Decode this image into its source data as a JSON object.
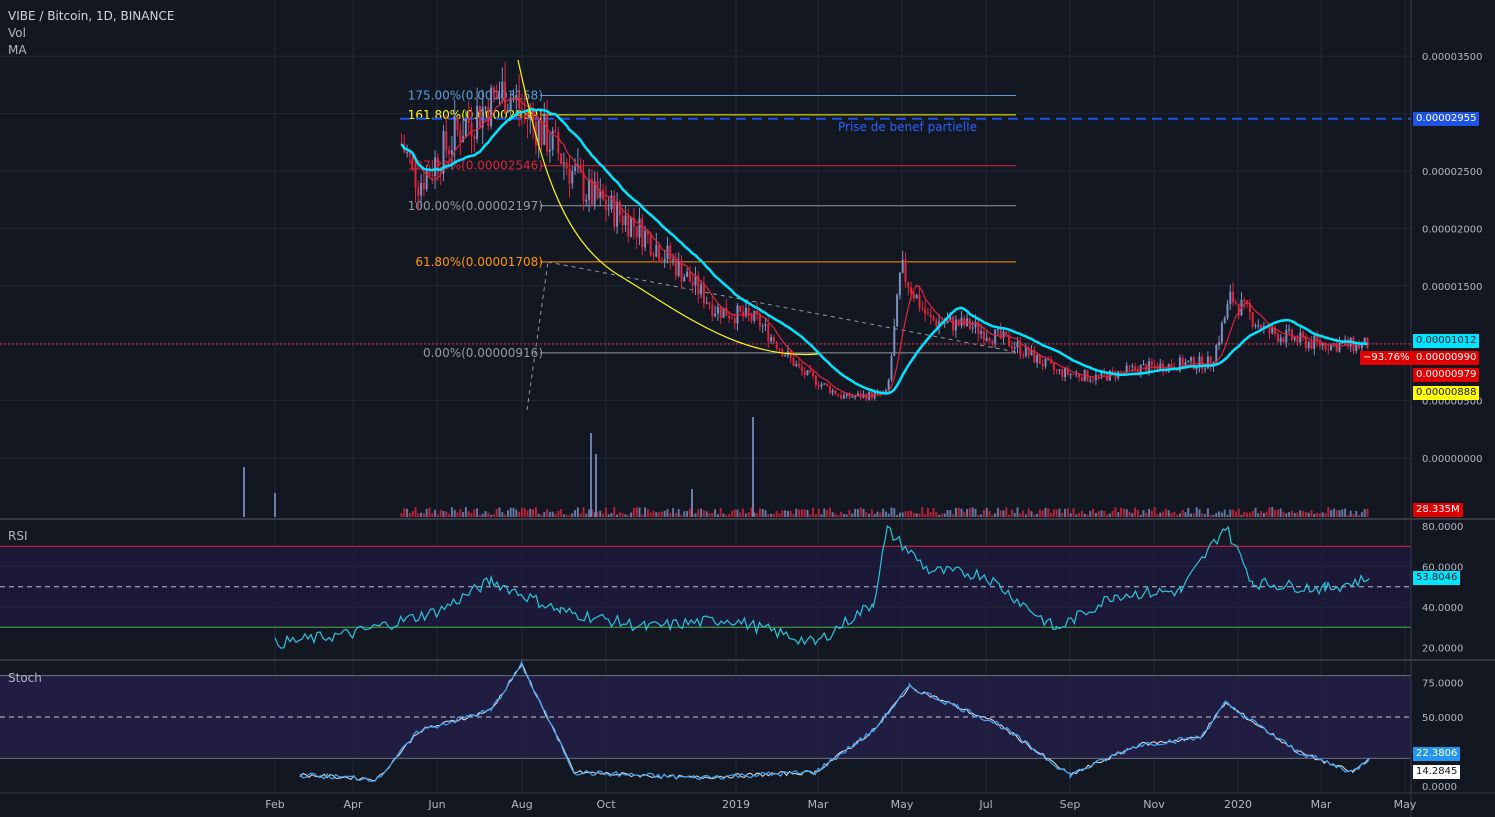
{
  "header": {
    "symbol_line": "VIBE / Bitcoin, 1D, BINANCE",
    "indicator_vol": "Vol",
    "indicator_ma": "MA"
  },
  "annotation": {
    "text": "Prise de benef partielle"
  },
  "price_tags": [
    {
      "text": "0.00002955",
      "bg": "#1e53e5",
      "fg": "#ffffff"
    },
    {
      "text": "0.00001012",
      "bg": "#00e5ff",
      "fg": "#131722"
    },
    {
      "text": "−93.76%",
      "bg": "#e00000",
      "fg": "#ffffff"
    },
    {
      "text": "0.00000990",
      "bg": "#e00000",
      "fg": "#ffffff"
    },
    {
      "text": "0.00000979",
      "bg": "#e00000",
      "fg": "#ffffff"
    },
    {
      "text": "0.00000888",
      "bg": "#ffff00",
      "fg": "#131722"
    },
    {
      "text": "28.335M",
      "bg": "#e00000",
      "fg": "#ffffff"
    }
  ],
  "rsi": {
    "label": "RSI",
    "value_tag": "53.8046"
  },
  "stoch": {
    "label": "Stoch",
    "k_tag": "22.3806",
    "d_tag": "14.2845"
  },
  "colors": {
    "background": "#131722",
    "grid": "#1f2736",
    "up_candle": "#7b8fc0",
    "down_candle": "#e0243b",
    "ma_fast": "#00e5ff",
    "ma_slow": "#ffff00",
    "ma_red": "#e0243b",
    "rsi_line": "#26c6da",
    "stoch_k": "#42a5f5",
    "stoch_d": "#e0e0e0"
  },
  "chart_data": {
    "type": "candlestick",
    "title": "VIBE / Bitcoin, 1D, BINANCE",
    "x_tick_labels": [
      "Feb",
      "Apr",
      "Jun",
      "Aug",
      "Oct",
      "2019",
      "Mar",
      "May",
      "Jul",
      "Sep",
      "Nov",
      "2020",
      "Mar",
      "May"
    ],
    "y_tick_labels": [
      "0.00003500",
      "0.00002500",
      "0.00002000",
      "0.00001500",
      "0.00000500",
      "0.00000000"
    ],
    "price_series": [
      {
        "date": "2018-02-25",
        "value": 3.4e-05
      },
      {
        "date": "2018-03-10",
        "value": 3.2e-05
      },
      {
        "date": "2018-03-25",
        "value": 2.4e-05
      },
      {
        "date": "2018-04-10",
        "value": 2.9e-05
      },
      {
        "date": "2018-04-25",
        "value": 3.2e-05
      },
      {
        "date": "2018-05-10",
        "value": 2.8e-05
      },
      {
        "date": "2018-05-25",
        "value": 2.3e-05
      },
      {
        "date": "2018-06-10",
        "value": 2.05e-05
      },
      {
        "date": "2018-06-25",
        "value": 1.7e-05
      },
      {
        "date": "2018-07-10",
        "value": 1.3e-05
      },
      {
        "date": "2018-07-25",
        "value": 1.2e-05
      },
      {
        "date": "2018-08-10",
        "value": 7.5e-06
      },
      {
        "date": "2018-08-25",
        "value": 5.3e-06
      },
      {
        "date": "2018-09-10",
        "value": 5.6e-06
      },
      {
        "date": "2018-09-15",
        "value": 1.65e-05
      },
      {
        "date": "2018-09-25",
        "value": 1.2e-05
      },
      {
        "date": "2018-10-10",
        "value": 1.15e-05
      },
      {
        "date": "2018-10-25",
        "value": 1e-05
      },
      {
        "date": "2018-11-10",
        "value": 7.5e-06
      },
      {
        "date": "2018-11-25",
        "value": 7e-06
      },
      {
        "date": "2018-12-10",
        "value": 7.8e-06
      },
      {
        "date": "2018-12-25",
        "value": 8.2e-06
      },
      {
        "date": "2019-01-05",
        "value": 8.3e-06
      },
      {
        "date": "2019-01-12",
        "value": 1.4e-05
      },
      {
        "date": "2019-01-25",
        "value": 1.1e-05
      },
      {
        "date": "2019-02-10",
        "value": 1e-05
      },
      {
        "date": "2019-02-25",
        "value": 9.8e-06
      },
      {
        "date": "2019-03-03",
        "value": 9.9e-06
      }
    ],
    "fib_levels": [
      {
        "label": "175.00%(0.00003158)",
        "value": 3.158e-05,
        "color": "#5b9bd5"
      },
      {
        "label": "161.80%(0.00002989)",
        "value": 2.989e-05,
        "color": "#ffff00"
      },
      {
        "label": "127.20%(0.00002546)",
        "value": 2.546e-05,
        "color": "#e0243b"
      },
      {
        "label": "100.00%(0.00002197)",
        "value": 2.197e-05,
        "color": "#9598a1"
      },
      {
        "label": "61.80%(0.00001708)",
        "value": 1.708e-05,
        "color": "#ff9800"
      },
      {
        "label": "0.00%(0.00000916)",
        "value": 9.16e-06,
        "color": "#9598a1"
      }
    ],
    "horizontal_lines": [
      {
        "value": 2.955e-05,
        "style": "dashed",
        "color": "#1e53e5"
      }
    ],
    "rsi_levels": [
      80,
      70,
      60,
      50,
      40,
      30,
      20
    ],
    "rsi_tick_labels": [
      "80.0000",
      "60.0000",
      "40.0000",
      "20.0000"
    ],
    "stoch_tick_labels": [
      "75.0000",
      "50.0000",
      "0.0000"
    ],
    "rsi_series": [
      {
        "date": "2018-02-01",
        "value": 22
      },
      {
        "date": "2018-03-01",
        "value": 27
      },
      {
        "date": "2018-04-01",
        "value": 38
      },
      {
        "date": "2018-04-20",
        "value": 53
      },
      {
        "date": "2018-05-15",
        "value": 38
      },
      {
        "date": "2018-06-15",
        "value": 30
      },
      {
        "date": "2018-07-15",
        "value": 34
      },
      {
        "date": "2018-08-15",
        "value": 22
      },
      {
        "date": "2018-09-05",
        "value": 42
      },
      {
        "date": "2018-09-10",
        "value": 78
      },
      {
        "date": "2018-09-25",
        "value": 58
      },
      {
        "date": "2018-10-15",
        "value": 56
      },
      {
        "date": "2018-11-10",
        "value": 29
      },
      {
        "date": "2018-12-01",
        "value": 46
      },
      {
        "date": "2018-12-25",
        "value": 48
      },
      {
        "date": "2019-01-10",
        "value": 80
      },
      {
        "date": "2019-01-20",
        "value": 52
      },
      {
        "date": "2019-02-15",
        "value": 49
      },
      {
        "date": "2019-03-03",
        "value": 54
      }
    ],
    "stoch_series": [
      {
        "date": "2018-02-10",
        "value": 8
      },
      {
        "date": "2018-03-10",
        "value": 5
      },
      {
        "date": "2018-03-25",
        "value": 40
      },
      {
        "date": "2018-04-20",
        "value": 55
      },
      {
        "date": "2018-05-01",
        "value": 88
      },
      {
        "date": "2018-05-20",
        "value": 10
      },
      {
        "date": "2018-07-01",
        "value": 6
      },
      {
        "date": "2018-08-15",
        "value": 10
      },
      {
        "date": "2018-09-05",
        "value": 40
      },
      {
        "date": "2018-09-18",
        "value": 72
      },
      {
        "date": "2018-10-20",
        "value": 45
      },
      {
        "date": "2018-11-15",
        "value": 8
      },
      {
        "date": "2018-12-10",
        "value": 30
      },
      {
        "date": "2019-01-01",
        "value": 35
      },
      {
        "date": "2019-01-10",
        "value": 60
      },
      {
        "date": "2019-02-05",
        "value": 25
      },
      {
        "date": "2019-02-25",
        "value": 10
      },
      {
        "date": "2019-03-03",
        "value": 20
      }
    ]
  }
}
